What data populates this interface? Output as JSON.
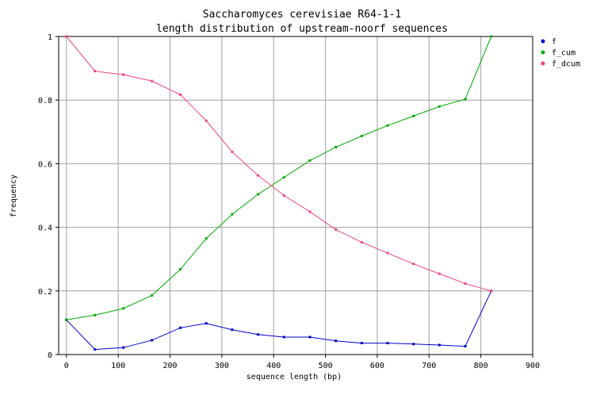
{
  "chart_data": {
    "type": "line",
    "title": "Saccharomyces cerevisiae R64-1-1",
    "subtitle": "length distribution of upstream-noorf sequences",
    "xlabel": "sequence length (bp)",
    "ylabel": "frequency",
    "xlim": [
      -15,
      900
    ],
    "ylim": [
      0,
      1
    ],
    "xticks": [
      0,
      100,
      200,
      300,
      400,
      500,
      600,
      700,
      800,
      900
    ],
    "yticks": [
      0,
      0.2,
      0.4,
      0.6,
      0.8,
      1
    ],
    "ytick_labels": [
      "0",
      "0.2",
      "0.4",
      "0.6",
      "0.8",
      "1"
    ],
    "grid": true,
    "legend_position": "right",
    "x": [
      0,
      55,
      110,
      165,
      220,
      270,
      320,
      370,
      420,
      470,
      520,
      570,
      620,
      670,
      720,
      770,
      820
    ],
    "series": [
      {
        "name": "f",
        "color": "#0000cc",
        "values": [
          0.109,
          0.016,
          0.022,
          0.045,
          0.084,
          0.098,
          0.078,
          0.063,
          0.055,
          0.055,
          0.043,
          0.036,
          0.036,
          0.033,
          0.03,
          0.026,
          0.2
        ]
      },
      {
        "name": "f_cum",
        "color": "#00aa00",
        "values": [
          0.109,
          0.124,
          0.145,
          0.186,
          0.268,
          0.365,
          0.441,
          0.504,
          0.557,
          0.61,
          0.652,
          0.687,
          0.72,
          0.75,
          0.78,
          0.803,
          1.0
        ]
      },
      {
        "name": "f_dcum",
        "color": "#ee4477",
        "values": [
          1.0,
          0.891,
          0.88,
          0.86,
          0.817,
          0.735,
          0.637,
          0.563,
          0.5,
          0.449,
          0.393,
          0.353,
          0.319,
          0.285,
          0.254,
          0.223,
          0.2
        ]
      }
    ]
  }
}
